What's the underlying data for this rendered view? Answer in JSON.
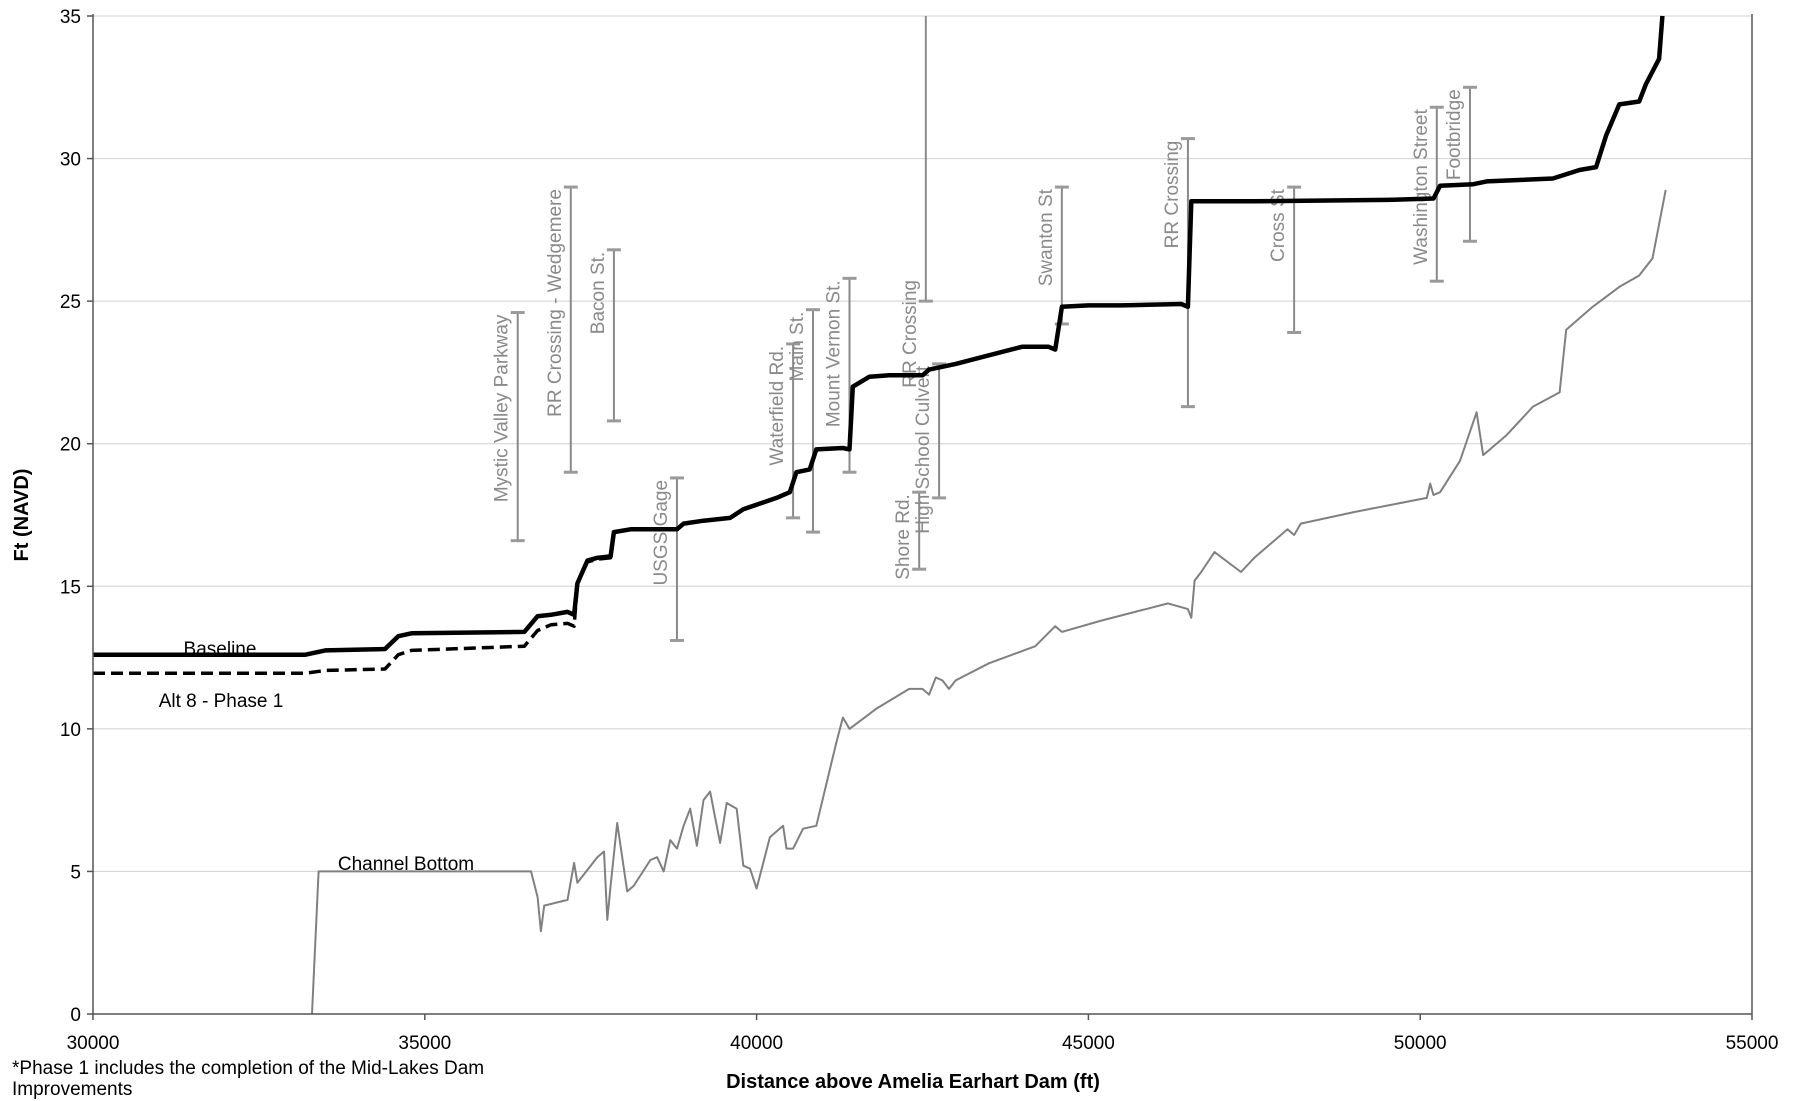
{
  "chart_data": {
    "type": "line",
    "xlabel": "Distance above Amelia Earhart Dam (ft)",
    "ylabel": "Ft (NAVD)",
    "xlim": [
      30000,
      55000
    ],
    "ylim": [
      0,
      35
    ],
    "x_ticks": [
      30000,
      35000,
      40000,
      45000,
      50000,
      55000
    ],
    "y_ticks": [
      0,
      5,
      10,
      15,
      20,
      25,
      30,
      35
    ],
    "grid": "horizontal",
    "series": [
      {
        "name": "Baseline",
        "color": "#000000",
        "style": "solid",
        "points": [
          [
            30000,
            12.6
          ],
          [
            33200,
            12.6
          ],
          [
            33500,
            12.75
          ],
          [
            34400,
            12.8
          ],
          [
            34600,
            13.25
          ],
          [
            34800,
            13.35
          ],
          [
            36500,
            13.4
          ],
          [
            36700,
            13.95
          ],
          [
            36900,
            14.0
          ],
          [
            37150,
            14.1
          ],
          [
            37250,
            14.0
          ],
          [
            37300,
            15.1
          ],
          [
            37450,
            15.9
          ],
          [
            37600,
            16.0
          ],
          [
            37800,
            16.05
          ],
          [
            37850,
            16.9
          ],
          [
            38100,
            17.0
          ],
          [
            38800,
            17.0
          ],
          [
            38900,
            17.2
          ],
          [
            39200,
            17.3
          ],
          [
            39600,
            17.4
          ],
          [
            39800,
            17.7
          ],
          [
            40300,
            18.1
          ],
          [
            40500,
            18.3
          ],
          [
            40600,
            19.0
          ],
          [
            40800,
            19.1
          ],
          [
            40900,
            19.8
          ],
          [
            41300,
            19.85
          ],
          [
            41400,
            19.8
          ],
          [
            41450,
            22.0
          ],
          [
            41700,
            22.35
          ],
          [
            42000,
            22.4
          ],
          [
            42500,
            22.4
          ],
          [
            42600,
            22.6
          ],
          [
            43000,
            22.8
          ],
          [
            43500,
            23.1
          ],
          [
            44000,
            23.4
          ],
          [
            44400,
            23.4
          ],
          [
            44500,
            23.3
          ],
          [
            44600,
            24.8
          ],
          [
            45000,
            24.85
          ],
          [
            45500,
            24.85
          ],
          [
            46400,
            24.9
          ],
          [
            46500,
            24.8
          ],
          [
            46550,
            28.5
          ],
          [
            47500,
            28.5
          ],
          [
            49500,
            28.55
          ],
          [
            50200,
            28.6
          ],
          [
            50300,
            29.05
          ],
          [
            50800,
            29.1
          ],
          [
            51000,
            29.2
          ],
          [
            52000,
            29.3
          ],
          [
            52400,
            29.6
          ],
          [
            52650,
            29.7
          ],
          [
            52800,
            30.8
          ],
          [
            53000,
            31.9
          ],
          [
            53300,
            32.0
          ],
          [
            53400,
            32.6
          ],
          [
            53600,
            33.5
          ],
          [
            53650,
            35.0
          ]
        ]
      },
      {
        "name": "Alt 8 - Phase 1",
        "color": "#000000",
        "style": "dashed",
        "points": [
          [
            30000,
            11.95
          ],
          [
            33200,
            11.95
          ],
          [
            33500,
            12.05
          ],
          [
            34400,
            12.1
          ],
          [
            34600,
            12.6
          ],
          [
            34800,
            12.75
          ],
          [
            36500,
            12.9
          ],
          [
            36700,
            13.45
          ],
          [
            36900,
            13.65
          ],
          [
            37150,
            13.7
          ],
          [
            37250,
            13.6
          ],
          [
            37300,
            15.1
          ],
          [
            37450,
            15.85
          ],
          [
            37600,
            15.95
          ],
          [
            37800,
            16.0
          ],
          [
            37850,
            16.9
          ],
          [
            38100,
            17.0
          ],
          [
            38800,
            17.0
          ],
          [
            38900,
            17.2
          ],
          [
            39200,
            17.3
          ],
          [
            39600,
            17.4
          ],
          [
            39800,
            17.7
          ],
          [
            40300,
            18.1
          ],
          [
            40500,
            18.3
          ],
          [
            40600,
            19.0
          ],
          [
            40800,
            19.1
          ],
          [
            40900,
            19.8
          ],
          [
            41300,
            19.85
          ],
          [
            41400,
            19.8
          ],
          [
            41450,
            22.0
          ],
          [
            41700,
            22.35
          ],
          [
            42000,
            22.4
          ],
          [
            42500,
            22.4
          ],
          [
            42600,
            22.6
          ],
          [
            43000,
            22.8
          ],
          [
            43500,
            23.1
          ],
          [
            44000,
            23.4
          ],
          [
            44400,
            23.4
          ],
          [
            44500,
            23.3
          ],
          [
            44600,
            24.8
          ],
          [
            45000,
            24.85
          ],
          [
            45500,
            24.85
          ],
          [
            46400,
            24.9
          ],
          [
            46500,
            24.8
          ],
          [
            46550,
            28.5
          ],
          [
            47500,
            28.5
          ],
          [
            49500,
            28.55
          ],
          [
            50200,
            28.6
          ],
          [
            50300,
            29.05
          ],
          [
            50800,
            29.1
          ],
          [
            51000,
            29.2
          ],
          [
            52000,
            29.3
          ],
          [
            52400,
            29.6
          ],
          [
            52650,
            29.7
          ],
          [
            52800,
            30.8
          ],
          [
            53000,
            31.9
          ],
          [
            53300,
            32.0
          ],
          [
            53400,
            32.6
          ],
          [
            53600,
            33.5
          ],
          [
            53650,
            35.0
          ]
        ]
      },
      {
        "name": "Channel Bottom",
        "color": "#808080",
        "style": "solid",
        "points": [
          [
            33300,
            0.0
          ],
          [
            33400,
            5.0
          ],
          [
            36600,
            5.0
          ],
          [
            36700,
            4.1
          ],
          [
            36750,
            2.9
          ],
          [
            36800,
            3.8
          ],
          [
            37150,
            4.0
          ],
          [
            37250,
            5.3
          ],
          [
            37300,
            4.6
          ],
          [
            37600,
            5.5
          ],
          [
            37700,
            5.7
          ],
          [
            37750,
            3.3
          ],
          [
            37800,
            4.5
          ],
          [
            37900,
            6.7
          ],
          [
            38050,
            4.3
          ],
          [
            38150,
            4.5
          ],
          [
            38400,
            5.4
          ],
          [
            38500,
            5.5
          ],
          [
            38600,
            5.0
          ],
          [
            38700,
            6.1
          ],
          [
            38800,
            5.8
          ],
          [
            38900,
            6.6
          ],
          [
            39000,
            7.2
          ],
          [
            39100,
            5.9
          ],
          [
            39200,
            7.5
          ],
          [
            39300,
            7.8
          ],
          [
            39450,
            6.0
          ],
          [
            39550,
            7.4
          ],
          [
            39700,
            7.2
          ],
          [
            39800,
            5.2
          ],
          [
            39900,
            5.1
          ],
          [
            40000,
            4.4
          ],
          [
            40200,
            6.2
          ],
          [
            40400,
            6.6
          ],
          [
            40450,
            5.8
          ],
          [
            40550,
            5.8
          ],
          [
            40700,
            6.5
          ],
          [
            40900,
            6.6
          ],
          [
            41200,
            9.5
          ],
          [
            41300,
            10.4
          ],
          [
            41400,
            10.0
          ],
          [
            41800,
            10.7
          ],
          [
            42300,
            11.4
          ],
          [
            42500,
            11.4
          ],
          [
            42600,
            11.2
          ],
          [
            42700,
            11.8
          ],
          [
            42800,
            11.7
          ],
          [
            42900,
            11.4
          ],
          [
            43000,
            11.7
          ],
          [
            43500,
            12.3
          ],
          [
            44200,
            12.9
          ],
          [
            44500,
            13.6
          ],
          [
            44600,
            13.4
          ],
          [
            45200,
            13.8
          ],
          [
            46200,
            14.4
          ],
          [
            46500,
            14.2
          ],
          [
            46550,
            13.9
          ],
          [
            46600,
            15.2
          ],
          [
            46700,
            15.5
          ],
          [
            46900,
            16.2
          ],
          [
            47300,
            15.5
          ],
          [
            47500,
            16.0
          ],
          [
            48000,
            17.0
          ],
          [
            48100,
            16.8
          ],
          [
            48200,
            17.2
          ],
          [
            49000,
            17.6
          ],
          [
            50100,
            18.1
          ],
          [
            50150,
            18.6
          ],
          [
            50200,
            18.2
          ],
          [
            50300,
            18.3
          ],
          [
            50600,
            19.4
          ],
          [
            50850,
            21.1
          ],
          [
            50950,
            19.6
          ],
          [
            51300,
            20.3
          ],
          [
            51700,
            21.3
          ],
          [
            52100,
            21.8
          ],
          [
            52200,
            24.0
          ],
          [
            52600,
            24.8
          ],
          [
            53000,
            25.5
          ],
          [
            53300,
            25.9
          ],
          [
            53500,
            26.5
          ],
          [
            53700,
            28.9
          ]
        ]
      }
    ],
    "series_labels": [
      "Baseline",
      "Alt 8 - Phase 1",
      "Channel Bottom"
    ],
    "structures": [
      {
        "label": "Mystic Valley Parkway",
        "x": 36400,
        "top": 24.6,
        "bottom": 16.6
      },
      {
        "label": "RR Crossing - Wedgemere",
        "x": 37200,
        "top": 29.0,
        "bottom": 19.0
      },
      {
        "label": "Bacon St.",
        "x": 37850,
        "top": 26.8,
        "bottom": 20.8
      },
      {
        "label": "USGS Gage",
        "x": 38800,
        "top": 18.8,
        "bottom": 13.1
      },
      {
        "label": "Waterfield Rd.",
        "x": 40550,
        "top": 23.5,
        "bottom": 17.4
      },
      {
        "label": "Main St.",
        "x": 40850,
        "top": 24.7,
        "bottom": 16.9
      },
      {
        "label": "Mount Vernon St.",
        "x": 41400,
        "top": 25.8,
        "bottom": 19.0
      },
      {
        "label": "Shore Rd.",
        "x": 42450,
        "top": 18.3,
        "bottom": 15.6
      },
      {
        "label": "RR Crossing",
        "x": 42550,
        "top": 35.0,
        "bottom": 25.0
      },
      {
        "label": "High School Culvert",
        "x": 42750,
        "top": 22.8,
        "bottom": 18.1
      },
      {
        "label": "Swanton St",
        "x": 44600,
        "top": 29.0,
        "bottom": 24.2
      },
      {
        "label": "RR Crossing",
        "x": 46500,
        "top": 30.7,
        "bottom": 21.3
      },
      {
        "label": "Cross St",
        "x": 48100,
        "top": 29.0,
        "bottom": 23.9
      },
      {
        "label": "Washington Street",
        "x": 50250,
        "top": 31.8,
        "bottom": 25.7
      },
      {
        "label": "Footbridge",
        "x": 50750,
        "top": 32.5,
        "bottom": 27.1
      }
    ]
  },
  "footnote": "*Phase 1 includes the completion of the Mid-Lakes Dam Improvements"
}
